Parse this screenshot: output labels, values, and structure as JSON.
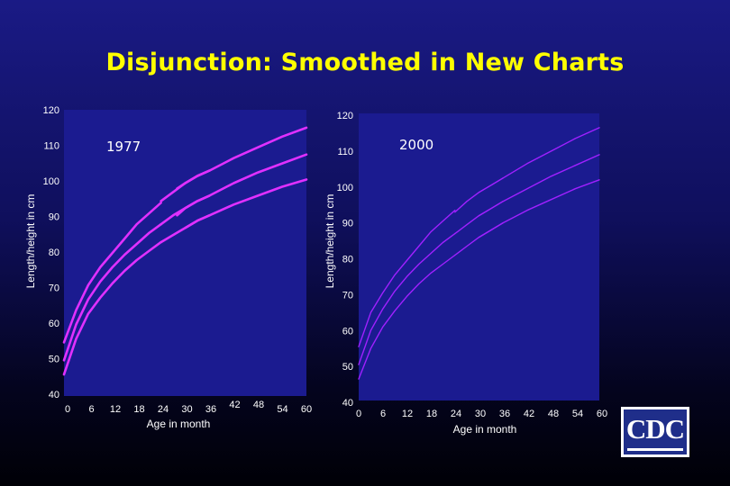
{
  "slide": {
    "title": "Disjunction: Smoothed in New Charts",
    "logo_text": "CDC"
  },
  "colors": {
    "title": "#ffff00",
    "curve_1977": "#e030ff",
    "curve_2000": "#a020ff",
    "plot_bg": "#1b1b90",
    "text": "#ffffff"
  },
  "chart_data": [
    {
      "type": "line",
      "label": "1977",
      "xlabel": "Age in month",
      "ylabel": "Length/height in cm",
      "xlim": [
        0,
        60
      ],
      "ylim": [
        40,
        120
      ],
      "x_ticks": [
        "0",
        "6",
        "12",
        "18",
        "24",
        "30",
        "36",
        "42",
        "48",
        "54",
        "60"
      ],
      "y_ticks": [
        "40",
        "50",
        "60",
        "70",
        "80",
        "90",
        "100",
        "110",
        "120"
      ],
      "series": [
        {
          "name": "upper",
          "segments": [
            {
              "x": [
                0,
                3,
                6,
                9,
                12,
                15,
                18,
                21,
                24
              ],
              "y": [
                55,
                64,
                71,
                76,
                80,
                84,
                88,
                91,
                94
              ]
            },
            {
              "x": [
                24,
                27,
                30,
                33,
                36
              ],
              "y": [
                94.5,
                97,
                99.5,
                101.5,
                103
              ]
            },
            {
              "x": [
                28,
                30,
                33,
                36,
                42,
                48,
                54,
                60
              ],
              "y": [
                98,
                99.5,
                101.5,
                103,
                106.5,
                109.5,
                112.5,
                115
              ]
            }
          ]
        },
        {
          "name": "middle",
          "segments": [
            {
              "x": [
                0,
                3,
                6,
                9,
                12,
                15,
                18,
                21,
                24
              ],
              "y": [
                50,
                60,
                67,
                72,
                76,
                79.5,
                82.5,
                85.5,
                88
              ]
            },
            {
              "x": [
                24,
                27,
                30,
                33,
                36
              ],
              "y": [
                88,
                90.5,
                92.5,
                94.5,
                96
              ]
            },
            {
              "x": [
                28,
                30,
                33,
                36,
                42,
                48,
                54,
                60
              ],
              "y": [
                90.5,
                92.5,
                94.5,
                96,
                99.5,
                102.5,
                105,
                107.5
              ]
            }
          ]
        },
        {
          "name": "lower",
          "segments": [
            {
              "x": [
                0,
                3,
                6,
                9,
                12,
                15,
                18,
                21,
                24
              ],
              "y": [
                46,
                56,
                63,
                67.5,
                71.5,
                75,
                78,
                80.5,
                83
              ]
            },
            {
              "x": [
                24,
                27,
                30,
                33,
                36
              ],
              "y": [
                83,
                85,
                87,
                89,
                90.5
              ]
            },
            {
              "x": [
                30,
                33,
                36,
                42,
                48,
                54,
                60
              ],
              "y": [
                87,
                89,
                90.5,
                93.5,
                96,
                98.5,
                100.5
              ]
            }
          ]
        }
      ]
    },
    {
      "type": "line",
      "label": "2000",
      "xlabel": "Age in month",
      "ylabel": "Length/height in cm",
      "xlim": [
        0,
        60
      ],
      "ylim": [
        40,
        120
      ],
      "x_ticks": [
        "0",
        "6",
        "12",
        "18",
        "24",
        "30",
        "36",
        "42",
        "48",
        "54",
        "60"
      ],
      "y_ticks": [
        "40",
        "50",
        "60",
        "70",
        "80",
        "90",
        "100",
        "110",
        "120"
      ],
      "series": [
        {
          "name": "upper",
          "segments": [
            {
              "x": [
                0,
                3,
                6,
                9,
                12,
                15,
                18,
                21,
                24
              ],
              "y": [
                55,
                64.5,
                70,
                75,
                79,
                83,
                87,
                90,
                93
              ]
            },
            {
              "x": [
                24,
                27,
                30,
                33,
                36
              ],
              "y": [
                92.5,
                95.5,
                98,
                100,
                102
              ]
            },
            {
              "x": [
                30,
                33,
                36,
                42,
                48,
                54,
                60
              ],
              "y": [
                98,
                100,
                102,
                106,
                109.5,
                113,
                116
              ]
            }
          ]
        },
        {
          "name": "middle",
          "segments": [
            {
              "x": [
                0,
                3,
                6,
                9,
                12,
                15,
                18,
                21,
                24
              ],
              "y": [
                50,
                59.5,
                65.5,
                70.5,
                74.5,
                78,
                81,
                84,
                86.5
              ]
            },
            {
              "x": [
                24,
                27,
                30,
                33,
                36
              ],
              "y": [
                86.5,
                89,
                91.5,
                93.5,
                95.5
              ]
            },
            {
              "x": [
                30,
                33,
                36,
                42,
                48,
                54,
                60
              ],
              "y": [
                91.5,
                93.5,
                95.5,
                99,
                102.5,
                105.5,
                108.5
              ]
            }
          ]
        },
        {
          "name": "lower",
          "segments": [
            {
              "x": [
                0,
                3,
                6,
                9,
                12,
                15,
                18,
                21,
                24
              ],
              "y": [
                46,
                54.5,
                60.5,
                65,
                69,
                72.5,
                75.5,
                78,
                80.5
              ]
            },
            {
              "x": [
                24,
                27,
                30,
                33,
                36
              ],
              "y": [
                80.5,
                83,
                85.5,
                87.5,
                89.5
              ]
            },
            {
              "x": [
                30,
                33,
                36,
                42,
                48,
                54,
                60
              ],
              "y": [
                85.5,
                87.5,
                89.5,
                93,
                96,
                99,
                101.5
              ]
            }
          ]
        }
      ]
    }
  ]
}
